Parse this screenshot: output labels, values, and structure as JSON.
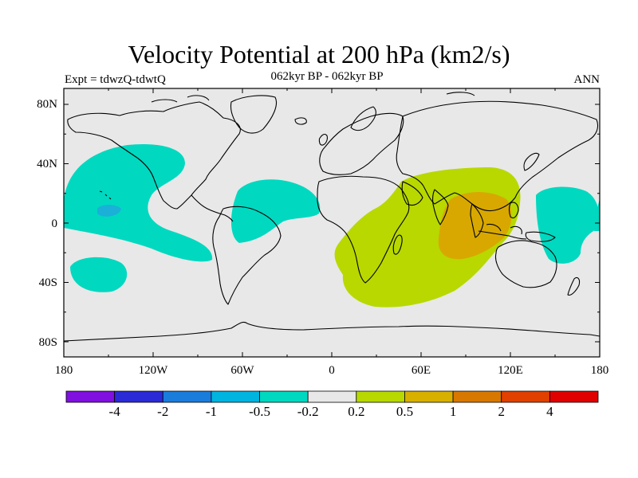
{
  "title": "Velocity Potential at 200 hPa (km2/s)",
  "subtitle": "062kyr BP - 062kyr BP",
  "experiment": "Expt = tdwzQ-tdwtQ",
  "season": "ANN",
  "axes": {
    "lat_labels": [
      "80N",
      "40N",
      "0",
      "40S",
      "80S"
    ],
    "lon_labels": [
      "180",
      "120W",
      "60W",
      "0",
      "60E",
      "120E",
      "180"
    ]
  },
  "colorbar": {
    "colors": [
      "#7f10e0",
      "#2a2ad6",
      "#1a7ddc",
      "#00b4e0",
      "#00d8c0",
      "#e8e8e8",
      "#b8d800",
      "#d8b000",
      "#d87800",
      "#e04000",
      "#e00000"
    ],
    "labels": [
      "-4",
      "-2",
      "-1",
      "-0.5",
      "-0.2",
      "0.2",
      "0.5",
      "1",
      "2",
      "4"
    ]
  },
  "colors": {
    "neutral": "#e8e8e8",
    "negative": "#00d8c0",
    "negative_strong": "#1ab0d8",
    "positive": "#b8d800",
    "positive_strong": "#d8a800",
    "coast": "#000000"
  }
}
